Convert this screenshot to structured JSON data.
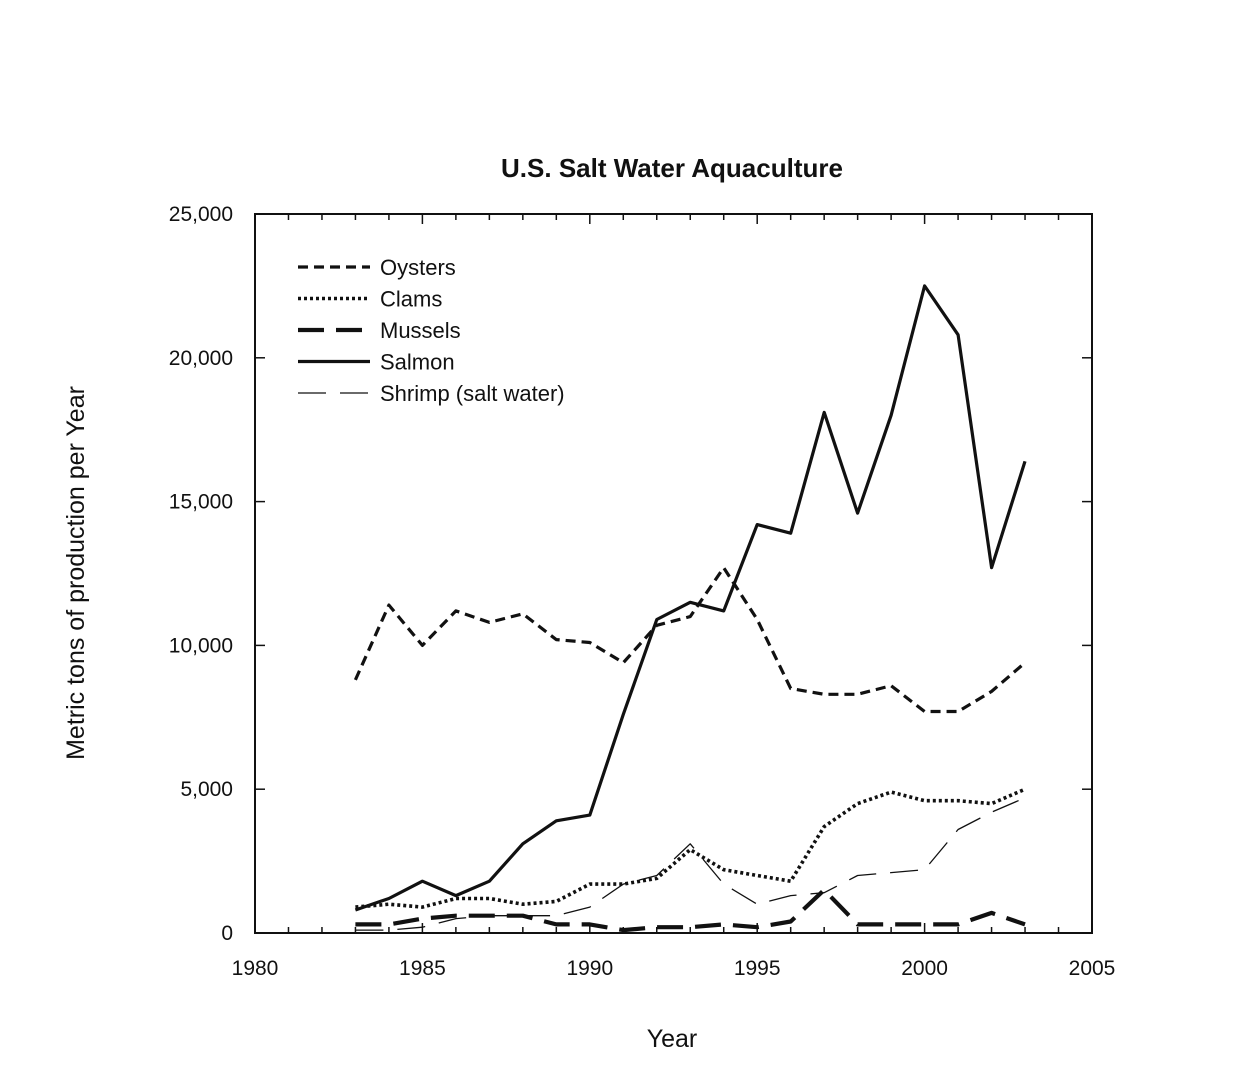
{
  "chart_data": {
    "type": "line",
    "title": "U.S. Salt Water Aquaculture",
    "xlabel": "Year",
    "ylabel": "Metric tons of production per Year",
    "xlim": [
      1980,
      2005
    ],
    "ylim": [
      0,
      25000
    ],
    "xticks": [
      1980,
      1985,
      1990,
      1995,
      2000,
      2005
    ],
    "xtick_labels": [
      "1980",
      "1985",
      "1990",
      "1995",
      "2000",
      "2005"
    ],
    "yticks": [
      0,
      5000,
      10000,
      15000,
      20000,
      25000
    ],
    "ytick_labels": [
      "0",
      "5,000",
      "10,000",
      "15,000",
      "20,000",
      "25,000"
    ],
    "grid": false,
    "legend_position": "top-left",
    "x": [
      1983,
      1984,
      1985,
      1986,
      1987,
      1988,
      1989,
      1990,
      1991,
      1992,
      1993,
      1994,
      1995,
      1996,
      1997,
      1998,
      1999,
      2000,
      2001,
      2002,
      2003
    ],
    "series": [
      {
        "name": "Oysters",
        "style": "dashed",
        "values": [
          8800,
          11400,
          10000,
          11200,
          10800,
          11100,
          10200,
          10100,
          9400,
          10700,
          11000,
          12700,
          10900,
          8500,
          8300,
          8300,
          8600,
          7700,
          7700,
          8400,
          9400
        ]
      },
      {
        "name": "Clams",
        "style": "dotted",
        "values": [
          900,
          1000,
          900,
          1200,
          1200,
          1000,
          1100,
          1700,
          1700,
          1900,
          2900,
          2200,
          2000,
          1800,
          3700,
          4500,
          4900,
          4600,
          4600,
          4500,
          5000
        ]
      },
      {
        "name": "Mussels",
        "style": "longdash",
        "values": [
          300,
          300,
          500,
          600,
          600,
          600,
          300,
          300,
          100,
          200,
          200,
          300,
          200,
          400,
          1500,
          300,
          300,
          300,
          300,
          700,
          300
        ]
      },
      {
        "name": "Salmon",
        "style": "solid",
        "values": [
          800,
          1200,
          1800,
          1300,
          1800,
          3100,
          3900,
          4100,
          7600,
          10900,
          11500,
          11200,
          14200,
          13900,
          18100,
          14600,
          18000,
          22500,
          20800,
          12700,
          16400
        ]
      },
      {
        "name": "Shrimp (salt water)",
        "style": "thin-longdash",
        "values": [
          100,
          100,
          200,
          500,
          600,
          600,
          600,
          900,
          1700,
          2000,
          3100,
          1700,
          1000,
          1300,
          1400,
          2000,
          2100,
          2200,
          3600,
          4200,
          4700
        ]
      }
    ]
  }
}
